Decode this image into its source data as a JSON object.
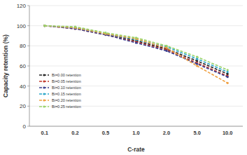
{
  "chart_data": {
    "type": "line",
    "x_label": "C-rate",
    "y_label": "Capacity retention (%)",
    "categories": [
      "0.1",
      "0.2",
      "0.5",
      "1.0",
      "2.0",
      "5.0",
      "10.0"
    ],
    "series": [
      {
        "name": "Bi=0.00 retention",
        "color": "#222222",
        "values": [
          100,
          98,
          92,
          85,
          77,
          65,
          52
        ]
      },
      {
        "name": "Bi=0.05 retention",
        "color": "#c0392b",
        "values": [
          100,
          97,
          91,
          84,
          76,
          63,
          50
        ]
      },
      {
        "name": "Bi=0.10 retention",
        "color": "#3a3f8f",
        "values": [
          100,
          97,
          91,
          83,
          75,
          62,
          49
        ]
      },
      {
        "name": "Bi=0.15 retention",
        "color": "#2aa7c9",
        "values": [
          100,
          98,
          92,
          86,
          79,
          67,
          54
        ]
      },
      {
        "name": "Bi=0.20 retention",
        "color": "#f0a040",
        "values": [
          100,
          98,
          92,
          87,
          78,
          60,
          43
        ]
      },
      {
        "name": "Bi=0.25 retention",
        "color": "#9ad36a",
        "values": [
          100,
          99,
          93,
          88,
          80,
          69,
          56
        ]
      }
    ],
    "ylim": [
      0,
      120
    ],
    "yticks": [
      0,
      20,
      40,
      60,
      80,
      100,
      120
    ],
    "grid": true,
    "legend": "lower left",
    "marker": "circle",
    "line_style": "dashed"
  }
}
